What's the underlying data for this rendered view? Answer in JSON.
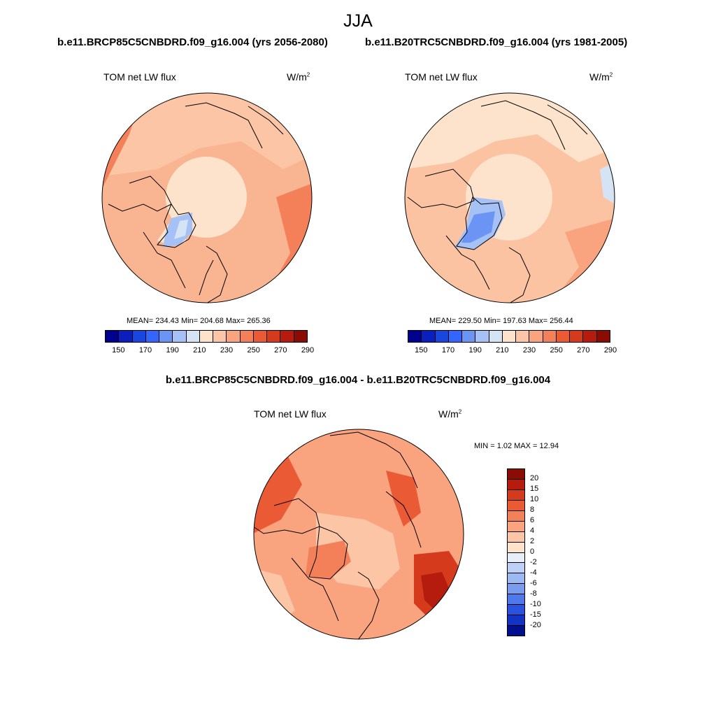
{
  "season": "JJA",
  "panels": {
    "left": {
      "run": "b.e11.BRCP85C5CNBDRD.f09_g16.004 (yrs 2056-2080)",
      "variable": "TOM net LW flux",
      "units_base": "W/m",
      "units_exp": "2",
      "stats": "MEAN= 234.43  Min= 204.68  Max= 265.36"
    },
    "right": {
      "run": "b.e11.B20TRC5CNBDRD.f09_g16.004 (yrs 1981-2005)",
      "variable": "TOM net LW flux",
      "units_base": "W/m",
      "units_exp": "2",
      "stats": "MEAN= 229.50  Min= 197.63  Max= 256.44"
    },
    "diff": {
      "title": "b.e11.BRCP85C5CNBDRD.f09_g16.004 - b.e11.B20TRC5CNBDRD.f09_g16.004",
      "variable": "TOM net LW flux",
      "units_base": "W/m",
      "units_exp": "2",
      "stats": "MIN =   1.02 MAX =  12.94"
    }
  },
  "abs_colorbar": {
    "ticks": [
      "150",
      "170",
      "190",
      "210",
      "230",
      "250",
      "270",
      "290"
    ],
    "colors": [
      "#00008f",
      "#0a1fbe",
      "#1a46e0",
      "#3366ff",
      "#6b94f5",
      "#a6c1f5",
      "#d4e4f5",
      "#fde3cc",
      "#fcc5a6",
      "#f9a47f",
      "#f4805a",
      "#ea5a35",
      "#d63a1c",
      "#b51c0d",
      "#8b0b05"
    ]
  },
  "diff_colorbar": {
    "labels": [
      "20",
      "15",
      "10",
      "8",
      "6",
      "4",
      "2",
      "0",
      "-2",
      "-4",
      "-6",
      "-8",
      "-10",
      "-15",
      "-20"
    ],
    "colors": [
      "#8b0b05",
      "#b51c0d",
      "#d63a1c",
      "#ea5a35",
      "#f4805a",
      "#f9a47f",
      "#fcc5a6",
      "#fde3cc",
      "#e6eefa",
      "#bdd0f5",
      "#9cb9f2",
      "#7a9cef",
      "#4f78ea",
      "#2a52e0",
      "#1233c4",
      "#000f8f"
    ]
  }
}
